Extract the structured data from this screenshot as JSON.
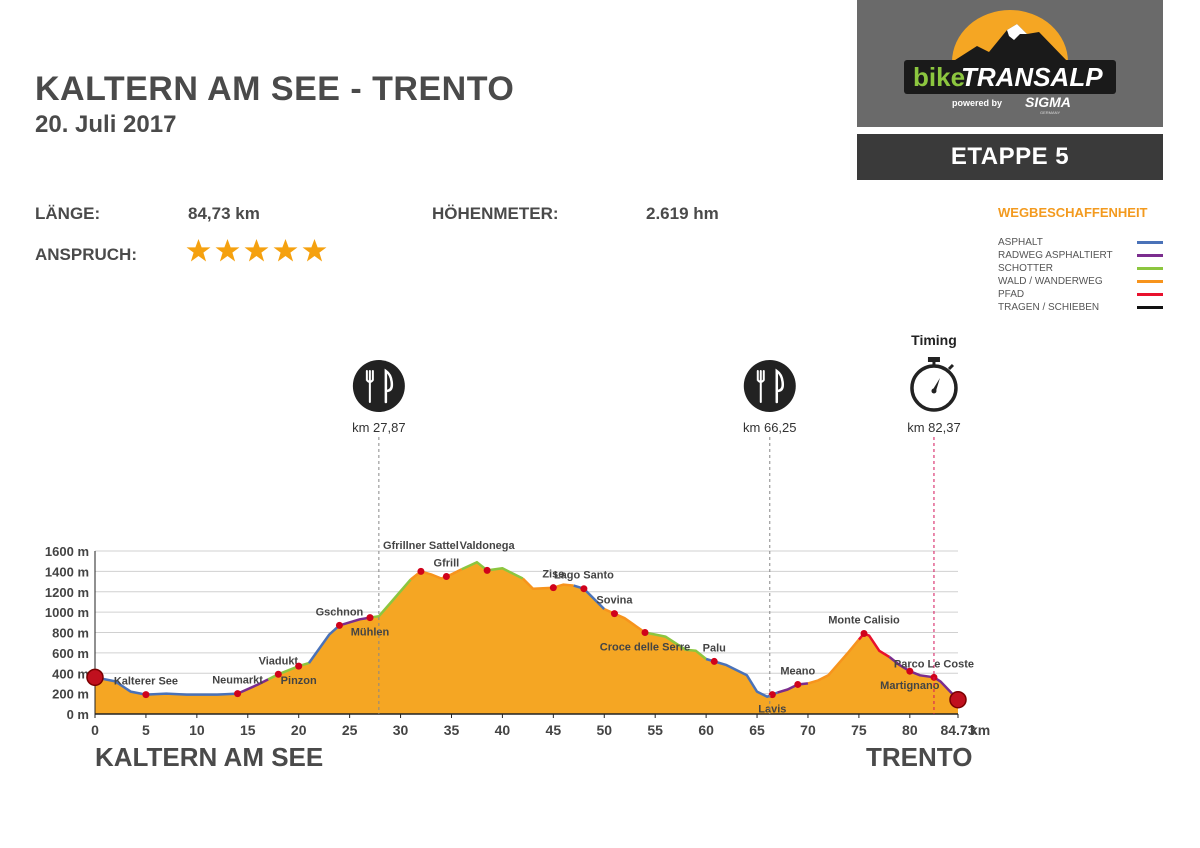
{
  "header": {
    "title": "KALTERN AM SEE - TRENTO",
    "date": "20. Juli 2017"
  },
  "logo": {
    "brand_part1": "bike",
    "brand_part2": "TRANSALP",
    "powered_by": "powered by",
    "sponsor": "SIGMA",
    "sponsor_sub": "GERMANY"
  },
  "stage": {
    "label": "ETAPPE 5"
  },
  "stats": {
    "length_label": "LÄNGE:",
    "length_value": "84,73 km",
    "elevation_label": "HÖHENMETER:",
    "elevation_value": "2.619 hm",
    "difficulty_label": "ANSPRUCH:",
    "difficulty_stars": 5
  },
  "legend": {
    "title": "WEGBESCHAFFENHEIT",
    "items": [
      {
        "label": "ASPHALT",
        "color": "#4a72b8"
      },
      {
        "label": "RADWEG ASPHALTIERT",
        "color": "#7b2d8e"
      },
      {
        "label": "SCHOTTER",
        "color": "#8cc63f"
      },
      {
        "label": "WALD / WANDERWEG",
        "color": "#f7941d"
      },
      {
        "label": "PFAD",
        "color": "#e8112d"
      },
      {
        "label": "TRAGEN / SCHIEBEN",
        "color": "#111111"
      }
    ]
  },
  "chart_data": {
    "type": "area",
    "title": "",
    "xlabel": "km",
    "ylabel": "",
    "xlim": [
      0,
      84.73
    ],
    "ylim": [
      0,
      1600
    ],
    "x_ticks": [
      "0",
      "5",
      "10",
      "15",
      "20",
      "25",
      "30",
      "35",
      "40",
      "45",
      "50",
      "55",
      "60",
      "65",
      "70",
      "75",
      "80",
      "84.73"
    ],
    "y_ticks": [
      "1600 m",
      "1400 m",
      "1200 m",
      "1000 m",
      "800 m",
      "600 m",
      "400 m",
      "200 m",
      "0 m"
    ],
    "grid": true,
    "fill_color": "#f5a623",
    "profile": [
      [
        0,
        360
      ],
      [
        2,
        320
      ],
      [
        3.5,
        220
      ],
      [
        5,
        190
      ],
      [
        7,
        200
      ],
      [
        9,
        190
      ],
      [
        12,
        190
      ],
      [
        14,
        200
      ],
      [
        16,
        290
      ],
      [
        18,
        390
      ],
      [
        20,
        470
      ],
      [
        21,
        500
      ],
      [
        23,
        780
      ],
      [
        24,
        870
      ],
      [
        26,
        930
      ],
      [
        27.87,
        960
      ],
      [
        29,
        1090
      ],
      [
        31,
        1320
      ],
      [
        32,
        1400
      ],
      [
        33,
        1370
      ],
      [
        34,
        1330
      ],
      [
        35,
        1370
      ],
      [
        36,
        1420
      ],
      [
        37.5,
        1490
      ],
      [
        38.5,
        1410
      ],
      [
        40,
        1430
      ],
      [
        42,
        1330
      ],
      [
        43,
        1230
      ],
      [
        45,
        1240
      ],
      [
        46,
        1270
      ],
      [
        47,
        1260
      ],
      [
        48,
        1230
      ],
      [
        50,
        1030
      ],
      [
        52,
        940
      ],
      [
        54,
        800
      ],
      [
        56,
        760
      ],
      [
        58,
        630
      ],
      [
        59,
        620
      ],
      [
        60,
        540
      ],
      [
        62,
        480
      ],
      [
        64,
        380
      ],
      [
        65,
        220
      ],
      [
        66,
        170
      ],
      [
        67,
        210
      ],
      [
        68,
        240
      ],
      [
        69,
        290
      ],
      [
        70,
        300
      ],
      [
        71,
        330
      ],
      [
        72,
        380
      ],
      [
        74,
        610
      ],
      [
        75.5,
        790
      ],
      [
        76,
        770
      ],
      [
        77,
        620
      ],
      [
        78,
        560
      ],
      [
        79,
        480
      ],
      [
        80,
        420
      ],
      [
        81,
        380
      ],
      [
        82.37,
        360
      ],
      [
        83,
        320
      ],
      [
        84.73,
        140
      ]
    ],
    "segments": [
      {
        "x0": 0,
        "x1": 14,
        "surface": "ASPHALT",
        "color": "#4a72b8"
      },
      {
        "x0": 14,
        "x1": 17,
        "surface": "RADWEG ASPHALTIERT",
        "color": "#7b2d8e"
      },
      {
        "x0": 17,
        "x1": 21,
        "surface": "SCHOTTER",
        "color": "#8cc63f"
      },
      {
        "x0": 21,
        "x1": 24,
        "surface": "ASPHALT",
        "color": "#4a72b8"
      },
      {
        "x0": 24,
        "x1": 27,
        "surface": "RADWEG ASPHALTIERT",
        "color": "#7b2d8e"
      },
      {
        "x0": 27,
        "x1": 31,
        "surface": "SCHOTTER",
        "color": "#8cc63f"
      },
      {
        "x0": 31,
        "x1": 36,
        "surface": "WALD / WANDERWEG",
        "color": "#f7941d"
      },
      {
        "x0": 36,
        "x1": 42,
        "surface": "SCHOTTER",
        "color": "#8cc63f"
      },
      {
        "x0": 42,
        "x1": 47,
        "surface": "WALD / WANDERWEG",
        "color": "#f7941d"
      },
      {
        "x0": 47,
        "x1": 50,
        "surface": "ASPHALT",
        "color": "#4a72b8"
      },
      {
        "x0": 50,
        "x1": 54,
        "surface": "WALD / WANDERWEG",
        "color": "#f7941d"
      },
      {
        "x0": 54,
        "x1": 60,
        "surface": "SCHOTTER",
        "color": "#8cc63f"
      },
      {
        "x0": 60,
        "x1": 67,
        "surface": "ASPHALT",
        "color": "#4a72b8"
      },
      {
        "x0": 67,
        "x1": 70,
        "surface": "RADWEG ASPHALTIERT",
        "color": "#7b2d8e"
      },
      {
        "x0": 70,
        "x1": 75,
        "surface": "WALD / WANDERWEG",
        "color": "#f7941d"
      },
      {
        "x0": 75,
        "x1": 78,
        "surface": "PFAD",
        "color": "#e8112d"
      },
      {
        "x0": 78,
        "x1": 84.73,
        "surface": "RADWEG ASPHALTIERT",
        "color": "#7b2d8e"
      }
    ],
    "waypoints": [
      {
        "name": "Kalterer See",
        "km": 5,
        "pos": "above"
      },
      {
        "name": "Neumarkt",
        "km": 14,
        "pos": "above"
      },
      {
        "name": "Viadukt",
        "km": 18,
        "pos": "above"
      },
      {
        "name": "Pinzon",
        "km": 20,
        "pos": "below"
      },
      {
        "name": "Gschnon",
        "km": 24,
        "pos": "above"
      },
      {
        "name": "Mühlen",
        "km": 27,
        "pos": "below"
      },
      {
        "name": "Gfrill",
        "km": 34.5,
        "pos": "above"
      },
      {
        "name": "Gfrillner Sattel",
        "km": 32,
        "pos": "top"
      },
      {
        "name": "Valdonega",
        "km": 38.5,
        "pos": "top"
      },
      {
        "name": "Zise",
        "km": 45,
        "pos": "above"
      },
      {
        "name": "Lago Santo",
        "km": 48,
        "pos": "above"
      },
      {
        "name": "Sovina",
        "km": 51,
        "pos": "above"
      },
      {
        "name": "Croce delle Serre",
        "km": 54,
        "pos": "below"
      },
      {
        "name": "Palu",
        "km": 60.8,
        "pos": "above"
      },
      {
        "name": "Meano",
        "km": 69,
        "pos": "above"
      },
      {
        "name": "Lavis",
        "km": 66.5,
        "pos": "below"
      },
      {
        "name": "Monte Calisio",
        "km": 75.5,
        "pos": "above"
      },
      {
        "name": "Martignano",
        "km": 80,
        "pos": "below"
      },
      {
        "name": "Parco Le Coste",
        "km": 82.37,
        "pos": "above"
      }
    ],
    "markers": [
      {
        "type": "food",
        "label": "km 27,87",
        "km": 27.87,
        "line_color": "#888888"
      },
      {
        "type": "food",
        "label": "km 66,25",
        "km": 66.25,
        "line_color": "#888888"
      },
      {
        "type": "timing",
        "label": "km 82,37",
        "km": 82.37,
        "title": "Timing",
        "line_color": "#d4145a"
      }
    ],
    "start_name": "KALTERN AM SEE",
    "end_name": "TRENTO"
  }
}
